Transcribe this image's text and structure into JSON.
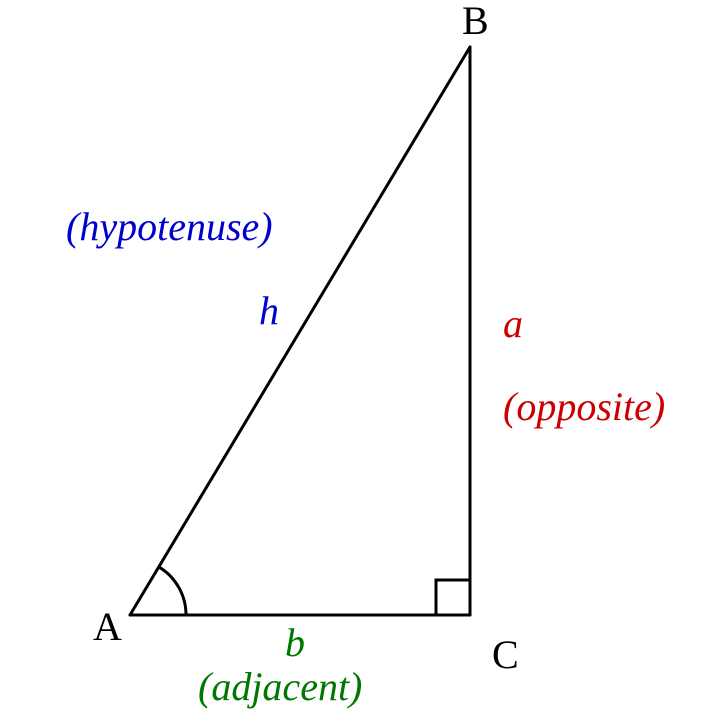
{
  "diagram": {
    "vertices": {
      "A": "A",
      "B": "B",
      "C": "C"
    },
    "sides": {
      "hypotenuse": {
        "symbol": "h",
        "description": "(hypotenuse)",
        "color": "#0000cc"
      },
      "opposite": {
        "symbol": "a",
        "description": "(opposite)",
        "color": "#cc0000"
      },
      "adjacent": {
        "symbol": "b",
        "description": "(adjacent)",
        "color": "#007700"
      }
    },
    "line_color": "#000000"
  }
}
